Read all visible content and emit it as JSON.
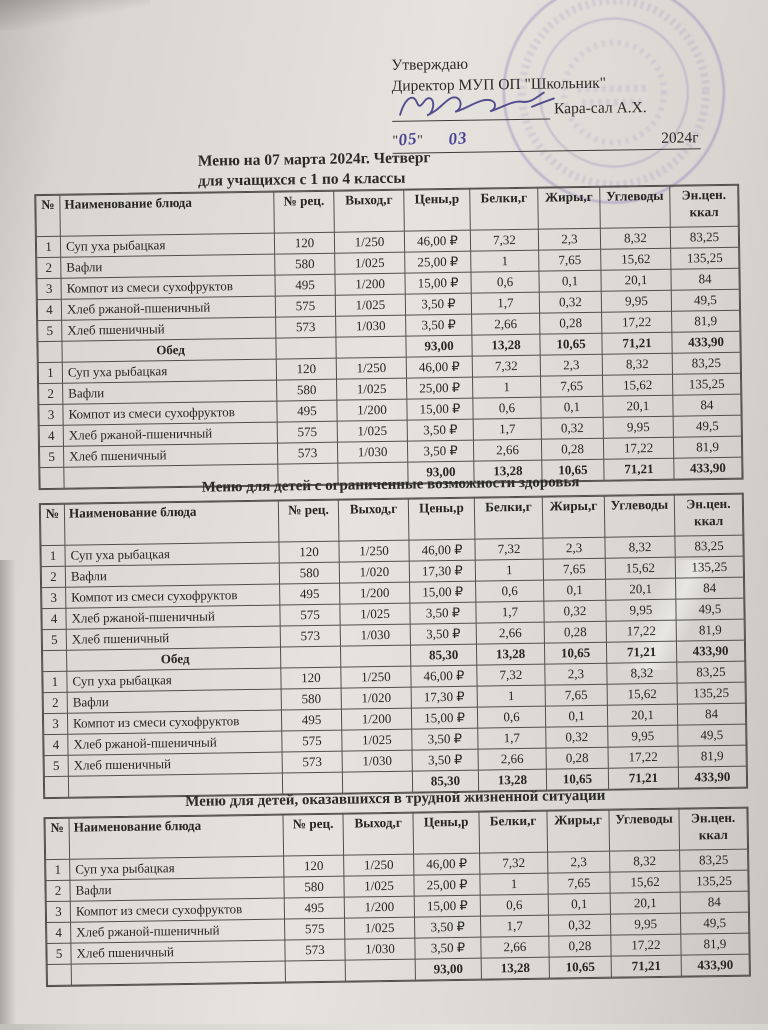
{
  "approval": {
    "approve_label": "Утверждаю",
    "director_line": "Директор МУП ОП \"Школьник\"",
    "director_name": "Кара-сал А.Х.",
    "date_quote_open": "\"",
    "date_day": "05",
    "date_quote_close": "\"",
    "date_month": "03",
    "date_year": "2024г"
  },
  "main_title": {
    "line1": "Меню на 07 марта 2024г. Четверг",
    "line2": "для учащихся с 1 по 4 классы"
  },
  "columns": [
    "№",
    "Наименование блюда",
    "№ рец.",
    "Выход,г",
    "Цены,р",
    "Белки,г",
    "Жиры,г",
    "Углеводы",
    "Эн.цен.\nккал"
  ],
  "colors": {
    "ink_signature": "#433d85",
    "stamp": "#6d60b2"
  },
  "tables": [
    {
      "title": "",
      "rows": [
        {
          "t": "item",
          "cells": [
            "1",
            "Суп уха рыбацкая",
            "120",
            "1/250",
            "46,00 ₽",
            "7,32",
            "2,3",
            "8,32",
            "83,25"
          ]
        },
        {
          "t": "item",
          "cells": [
            "2",
            "Вафли",
            "580",
            "1/025",
            "25,00 ₽",
            "1",
            "7,65",
            "15,62",
            "135,25"
          ]
        },
        {
          "t": "item",
          "cells": [
            "3",
            "Компот из смеси сухофруктов",
            "495",
            "1/200",
            "15,00 ₽",
            "0,6",
            "0,1",
            "20,1",
            "84"
          ]
        },
        {
          "t": "item",
          "cells": [
            "4",
            "Хлеб ржаной-пшеничный",
            "575",
            "1/025",
            "3,50 ₽",
            "1,7",
            "0,32",
            "9,95",
            "49,5"
          ]
        },
        {
          "t": "item",
          "cells": [
            "5",
            "Хлеб пшеничный",
            "573",
            "1/030",
            "3,50 ₽",
            "2,66",
            "0,28",
            "17,22",
            "81,9"
          ]
        },
        {
          "t": "section",
          "label": "Обед",
          "totals": [
            "93,00",
            "13,28",
            "10,65",
            "71,21",
            "433,90"
          ]
        },
        {
          "t": "item",
          "cells": [
            "1",
            "Суп уха рыбацкая",
            "120",
            "1/250",
            "46,00 ₽",
            "7,32",
            "2,3",
            "8,32",
            "83,25"
          ]
        },
        {
          "t": "item",
          "cells": [
            "2",
            "Вафли",
            "580",
            "1/025",
            "25,00 ₽",
            "1",
            "7,65",
            "15,62",
            "135,25"
          ]
        },
        {
          "t": "item",
          "cells": [
            "3",
            "Компот из смеси сухофруктов",
            "495",
            "1/200",
            "15,00 ₽",
            "0,6",
            "0,1",
            "20,1",
            "84"
          ]
        },
        {
          "t": "item",
          "cells": [
            "4",
            "Хлеб ржаной-пшеничный",
            "575",
            "1/025",
            "3,50 ₽",
            "1,7",
            "0,32",
            "9,95",
            "49,5"
          ]
        },
        {
          "t": "item",
          "cells": [
            "5",
            "Хлеб пшеничный",
            "573",
            "1/030",
            "3,50 ₽",
            "2,66",
            "0,28",
            "17,22",
            "81,9"
          ]
        },
        {
          "t": "total",
          "totals": [
            "93,00",
            "13,28",
            "10,65",
            "71,21",
            "433,90"
          ]
        }
      ]
    },
    {
      "title": "Меню для детей с ограниченные возможности здоровья",
      "rows": [
        {
          "t": "item",
          "cells": [
            "1",
            "Суп уха рыбацкая",
            "120",
            "1/250",
            "46,00 ₽",
            "7,32",
            "2,3",
            "8,32",
            "83,25"
          ]
        },
        {
          "t": "item",
          "cells": [
            "2",
            "Вафли",
            "580",
            "1/020",
            "17,30 ₽",
            "1",
            "7,65",
            "15,62",
            "135,25"
          ]
        },
        {
          "t": "item",
          "cells": [
            "3",
            "Компот из смеси сухофруктов",
            "495",
            "1/200",
            "15,00 ₽",
            "0,6",
            "0,1",
            "20,1",
            "84"
          ]
        },
        {
          "t": "item",
          "cells": [
            "4",
            "Хлеб ржаной-пшеничный",
            "575",
            "1/025",
            "3,50 ₽",
            "1,7",
            "0,32",
            "9,95",
            "49,5"
          ]
        },
        {
          "t": "item",
          "cells": [
            "5",
            "Хлеб пшеничный",
            "573",
            "1/030",
            "3,50 ₽",
            "2,66",
            "0,28",
            "17,22",
            "81,9"
          ]
        },
        {
          "t": "section",
          "label": "Обед",
          "totals": [
            "85,30",
            "13,28",
            "10,65",
            "71,21",
            "433,90"
          ]
        },
        {
          "t": "item",
          "cells": [
            "1",
            "Суп уха рыбацкая",
            "120",
            "1/250",
            "46,00 ₽",
            "7,32",
            "2,3",
            "8,32",
            "83,25"
          ]
        },
        {
          "t": "item",
          "cells": [
            "2",
            "Вафли",
            "580",
            "1/020",
            "17,30 ₽",
            "1",
            "7,65",
            "15,62",
            "135,25"
          ]
        },
        {
          "t": "item",
          "cells": [
            "3",
            "Компот из смеси сухофруктов",
            "495",
            "1/200",
            "15,00 ₽",
            "0,6",
            "0,1",
            "20,1",
            "84"
          ]
        },
        {
          "t": "item",
          "cells": [
            "4",
            "Хлеб ржаной-пшеничный",
            "575",
            "1/025",
            "3,50 ₽",
            "1,7",
            "0,32",
            "9,95",
            "49,5"
          ]
        },
        {
          "t": "item",
          "cells": [
            "5",
            "Хлеб пшеничный",
            "573",
            "1/030",
            "3,50 ₽",
            "2,66",
            "0,28",
            "17,22",
            "81,9"
          ]
        },
        {
          "t": "total",
          "totals": [
            "85,30",
            "13,28",
            "10,65",
            "71,21",
            "433,90"
          ]
        }
      ]
    },
    {
      "title": "Меню для детей, оказавшихся в трудной жизненной ситуации",
      "rows": [
        {
          "t": "item",
          "cells": [
            "1",
            "Суп уха рыбацкая",
            "120",
            "1/250",
            "46,00 ₽",
            "7,32",
            "2,3",
            "8,32",
            "83,25"
          ]
        },
        {
          "t": "item",
          "cells": [
            "2",
            "Вафли",
            "580",
            "1/025",
            "25,00 ₽",
            "1",
            "7,65",
            "15,62",
            "135,25"
          ]
        },
        {
          "t": "item",
          "cells": [
            "3",
            "Компот из смеси сухофруктов",
            "495",
            "1/200",
            "15,00 ₽",
            "0,6",
            "0,1",
            "20,1",
            "84"
          ]
        },
        {
          "t": "item",
          "cells": [
            "4",
            "Хлеб ржаной-пшеничный",
            "575",
            "1/025",
            "3,50 ₽",
            "1,7",
            "0,32",
            "9,95",
            "49,5"
          ]
        },
        {
          "t": "item",
          "cells": [
            "5",
            "Хлеб пшеничный",
            "573",
            "1/030",
            "3,50 ₽",
            "2,66",
            "0,28",
            "17,22",
            "81,9"
          ]
        },
        {
          "t": "total",
          "totals": [
            "93,00",
            "13,28",
            "10,65",
            "71,21",
            "433,90"
          ]
        }
      ]
    }
  ]
}
